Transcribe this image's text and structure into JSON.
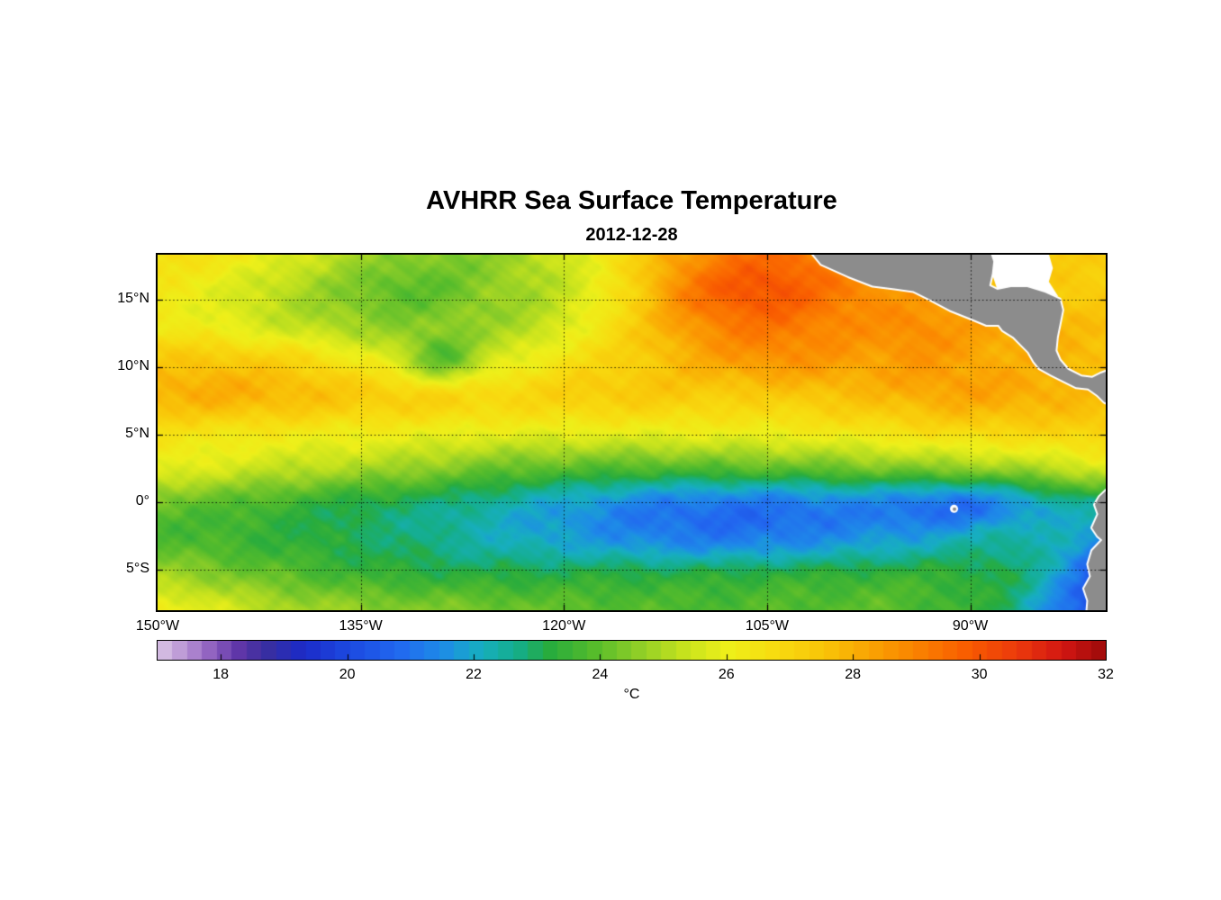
{
  "figure": {
    "title": "AVHRR Sea Surface Temperature",
    "subtitle": "2012-12-28"
  },
  "chart_data": {
    "type": "heatmap",
    "title": "AVHRR Sea Surface Temperature",
    "date": "2012-12-28",
    "projection": "equirectangular",
    "lon_range": [
      -150,
      -80
    ],
    "lat_range": [
      -8,
      18.3
    ],
    "x_ticks": [
      {
        "value": -150,
        "label": "150°W"
      },
      {
        "value": -135,
        "label": "135°W"
      },
      {
        "value": -120,
        "label": "120°W"
      },
      {
        "value": -105,
        "label": "105°W"
      },
      {
        "value": -90,
        "label": "90°W"
      }
    ],
    "y_ticks": [
      {
        "value": 15,
        "label": "15°N"
      },
      {
        "value": 10,
        "label": "10°N"
      },
      {
        "value": 5,
        "label": "5°N"
      },
      {
        "value": 0,
        "label": "0°"
      },
      {
        "value": -5,
        "label": "5°S"
      }
    ],
    "grid_lines": {
      "x": [
        -135,
        -120,
        -105,
        -90
      ],
      "y": [
        15,
        10,
        5,
        0,
        -5
      ],
      "style": "dotted"
    },
    "colorbar": {
      "range": [
        17,
        32
      ],
      "ticks": [
        18,
        20,
        22,
        24,
        26,
        28,
        30,
        32
      ],
      "label": "°C",
      "levels": 64
    },
    "colormap": [
      [
        17.0,
        "#DCC7E6"
      ],
      [
        17.5,
        "#B48CD2"
      ],
      [
        17.9,
        "#8A5BBE"
      ],
      [
        18.3,
        "#5E35A8"
      ],
      [
        18.7,
        "#3A2F9E"
      ],
      [
        19.3,
        "#1C2BC8"
      ],
      [
        20.0,
        "#1C48E0"
      ],
      [
        20.8,
        "#2268F0"
      ],
      [
        21.5,
        "#1E8CE8"
      ],
      [
        22.1,
        "#17AEC2"
      ],
      [
        22.7,
        "#15AE8A"
      ],
      [
        23.2,
        "#28AC3E"
      ],
      [
        23.9,
        "#55BC2C"
      ],
      [
        24.6,
        "#8ECE28"
      ],
      [
        25.3,
        "#C4E21E"
      ],
      [
        26.0,
        "#EEF01A"
      ],
      [
        26.8,
        "#F8DC10"
      ],
      [
        27.6,
        "#F9C308"
      ],
      [
        28.3,
        "#FAA203"
      ],
      [
        29.0,
        "#FB8300"
      ],
      [
        29.8,
        "#F95D00"
      ],
      [
        30.6,
        "#EC3A0C"
      ],
      [
        31.3,
        "#D31713"
      ],
      [
        32.0,
        "#9C0A0A"
      ]
    ],
    "grid": {
      "lon0": -150,
      "dlon": 3.5,
      "nlon": 21,
      "lat0": 18.3,
      "dlat": -2.63,
      "nlat": 11,
      "sst": [
        [
          26.8,
          26.5,
          26.1,
          25.6,
          25.0,
          24.6,
          24.4,
          24.6,
          25.1,
          25.9,
          27.0,
          28.3,
          29.2,
          29.5,
          29.1,
          28.5,
          28.1,
          27.8,
          27.5,
          27.3,
          27.2
        ],
        [
          26.3,
          26.0,
          25.5,
          25.0,
          24.5,
          24.0,
          24.1,
          24.6,
          25.0,
          25.7,
          27.0,
          28.8,
          29.8,
          30.0,
          29.4,
          28.8,
          28.3,
          27.9,
          27.6,
          27.4,
          27.3
        ],
        [
          26.4,
          26.1,
          25.7,
          25.3,
          24.9,
          24.6,
          24.5,
          24.8,
          25.2,
          26.1,
          27.2,
          28.3,
          29.1,
          29.3,
          29.0,
          28.7,
          28.8,
          28.4,
          28.0,
          27.8,
          27.6
        ],
        [
          27.4,
          27.5,
          27.3,
          27.0,
          26.4,
          25.7,
          24.0,
          25.5,
          26.2,
          26.8,
          27.2,
          27.8,
          28.3,
          28.6,
          28.5,
          28.3,
          28.5,
          28.3,
          28.0,
          27.9,
          27.7
        ],
        [
          27.9,
          28.0,
          27.9,
          27.7,
          27.4,
          27.2,
          27.0,
          26.9,
          27.0,
          27.2,
          27.3,
          27.3,
          27.2,
          27.3,
          27.5,
          27.7,
          28.0,
          28.2,
          28.1,
          27.9,
          27.7
        ],
        [
          26.6,
          26.5,
          26.4,
          26.3,
          26.2,
          26.1,
          26.0,
          25.9,
          25.9,
          25.9,
          25.9,
          26.0,
          26.0,
          26.1,
          26.2,
          26.4,
          26.6,
          26.8,
          26.9,
          27.0,
          27.1
        ],
        [
          25.9,
          25.7,
          25.4,
          25.2,
          25.0,
          24.8,
          24.5,
          24.2,
          24.0,
          23.9,
          23.8,
          23.8,
          23.9,
          24.0,
          24.1,
          24.3,
          24.4,
          24.6,
          24.8,
          25.2,
          25.6
        ],
        [
          24.2,
          24.0,
          23.8,
          23.5,
          23.2,
          23.0,
          22.8,
          22.5,
          22.1,
          21.8,
          21.4,
          21.2,
          21.1,
          21.1,
          21.3,
          21.4,
          21.1,
          21.0,
          21.6,
          22.4,
          22.8
        ],
        [
          23.8,
          23.7,
          23.5,
          23.3,
          23.1,
          22.9,
          22.6,
          22.3,
          22.0,
          21.8,
          21.5,
          21.3,
          21.2,
          21.3,
          21.5,
          21.7,
          21.9,
          22.2,
          22.5,
          22.2,
          21.4
        ],
        [
          24.9,
          24.6,
          24.2,
          23.9,
          23.6,
          23.4,
          23.3,
          23.2,
          23.2,
          23.2,
          23.2,
          23.2,
          23.2,
          23.3,
          23.3,
          23.4,
          23.4,
          23.3,
          23.0,
          21.8,
          20.2
        ],
        [
          26.2,
          25.8,
          25.3,
          24.9,
          24.7,
          24.5,
          24.4,
          24.3,
          24.1,
          24.0,
          23.9,
          23.8,
          23.8,
          23.9,
          23.9,
          24.0,
          23.8,
          23.5,
          22.8,
          21.2,
          19.9
        ]
      ]
    },
    "map_features": {
      "land_color": "#8C8C8C",
      "coast_color": "#FFFFFF",
      "land_polygons": [
        {
          "name": "central-america",
          "pts": [
            [
              -101.9,
              18.7
            ],
            [
              -101.0,
              17.6
            ],
            [
              -99.0,
              16.7
            ],
            [
              -97.2,
              16.0
            ],
            [
              -95.6,
              15.8
            ],
            [
              -94.2,
              15.6
            ],
            [
              -93.0,
              15.0
            ],
            [
              -91.5,
              14.2
            ],
            [
              -90.0,
              13.6
            ],
            [
              -88.8,
              13.1
            ],
            [
              -87.9,
              13.1
            ],
            [
              -87.6,
              12.7
            ],
            [
              -86.8,
              12.2
            ],
            [
              -86.2,
              11.6
            ],
            [
              -85.7,
              11.1
            ],
            [
              -85.3,
              10.4
            ],
            [
              -84.9,
              9.9
            ],
            [
              -84.0,
              9.4
            ],
            [
              -83.0,
              8.9
            ],
            [
              -82.2,
              8.5
            ],
            [
              -81.3,
              8.4
            ],
            [
              -80.6,
              7.9
            ],
            [
              -80.1,
              7.4
            ],
            [
              -79.6,
              7.2
            ],
            [
              -79.6,
              9.8
            ],
            [
              -80.4,
              9.5
            ],
            [
              -81.0,
              9.2
            ],
            [
              -81.8,
              9.3
            ],
            [
              -82.8,
              9.8
            ],
            [
              -83.4,
              10.5
            ],
            [
              -83.7,
              11.2
            ],
            [
              -83.6,
              12.2
            ],
            [
              -83.4,
              13.2
            ],
            [
              -83.2,
              14.2
            ],
            [
              -83.4,
              15.0
            ],
            [
              -84.5,
              15.5
            ],
            [
              -85.8,
              15.9
            ],
            [
              -87.0,
              15.9
            ],
            [
              -88.0,
              15.7
            ],
            [
              -88.6,
              16.0
            ],
            [
              -88.4,
              16.9
            ],
            [
              -88.3,
              17.8
            ],
            [
              -88.6,
              18.7
            ]
          ]
        },
        {
          "name": "south-america",
          "pts": [
            [
              -79.6,
              1.2
            ],
            [
              -80.45,
              0.4
            ],
            [
              -80.8,
              -0.2
            ],
            [
              -80.55,
              -0.9
            ],
            [
              -81.0,
              -1.9
            ],
            [
              -80.6,
              -2.5
            ],
            [
              -80.25,
              -2.8
            ],
            [
              -81.0,
              -3.6
            ],
            [
              -81.3,
              -4.6
            ],
            [
              -81.1,
              -5.5
            ],
            [
              -81.6,
              -6.4
            ],
            [
              -81.3,
              -7.3
            ],
            [
              -81.4,
              -8.5
            ],
            [
              -79.6,
              -8.5
            ]
          ]
        }
      ],
      "nodata_polygons": [
        {
          "name": "caribbean-nodata",
          "pts": [
            [
              -88.9,
              18.7
            ],
            [
              -84.3,
              18.7
            ],
            [
              -83.9,
              17.3
            ],
            [
              -84.2,
              16.3
            ],
            [
              -83.5,
              15.2
            ],
            [
              -84.5,
              15.5
            ],
            [
              -85.8,
              15.9
            ],
            [
              -87.0,
              15.9
            ],
            [
              -88.0,
              15.7
            ],
            [
              -88.4,
              16.9
            ],
            [
              -88.3,
              17.8
            ]
          ]
        }
      ],
      "islands": [
        {
          "name": "galapagos",
          "lon": -91.2,
          "lat": -0.5
        }
      ]
    }
  }
}
